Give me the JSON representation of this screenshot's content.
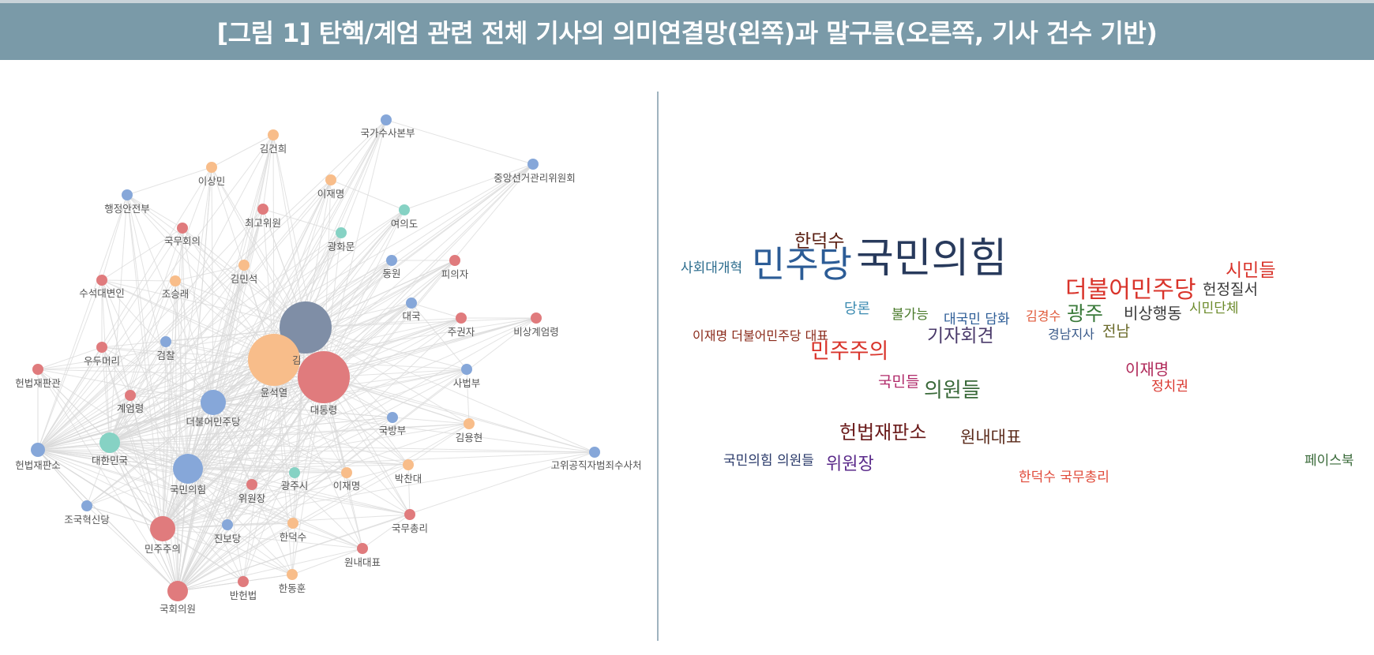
{
  "title": "[그림 1] 탄핵/계엄 관련 전체 기사의 의미연결망(왼쪽)과 말구름(오른쪽, 기사 건수 기반)",
  "colors": {
    "orange": "#f8bd8a",
    "blue": "#86a7d9",
    "red": "#e07b7d",
    "teal": "#86d2c4",
    "slate": "#7f8ea6",
    "edge": "#d9d9d9"
  },
  "network": {
    "nodes": [
      {
        "id": "n1",
        "label": "국가수사본부",
        "color": "blue"
      },
      {
        "id": "n2",
        "label": "김건희",
        "color": "orange"
      },
      {
        "id": "n3",
        "label": "중앙선거관리위원회",
        "color": "blue"
      },
      {
        "id": "n4",
        "label": "이상민",
        "color": "orange"
      },
      {
        "id": "n5",
        "label": "이재명",
        "color": "orange"
      },
      {
        "id": "n6",
        "label": "행정안전부",
        "color": "blue"
      },
      {
        "id": "n7",
        "label": "최고위원",
        "color": "red"
      },
      {
        "id": "n8",
        "label": "여의도",
        "color": "teal"
      },
      {
        "id": "n9",
        "label": "국무회의",
        "color": "red"
      },
      {
        "id": "n10",
        "label": "광화문",
        "color": "teal"
      },
      {
        "id": "n11",
        "label": "김민석",
        "color": "orange"
      },
      {
        "id": "n12",
        "label": "동원",
        "color": "blue"
      },
      {
        "id": "n13",
        "label": "피의자",
        "color": "red"
      },
      {
        "id": "n14",
        "label": "수석대변인",
        "color": "red"
      },
      {
        "id": "n15",
        "label": "조승래",
        "color": "orange"
      },
      {
        "id": "n16",
        "label": "대국",
        "color": "blue"
      },
      {
        "id": "n17",
        "label": "주권자",
        "color": "red"
      },
      {
        "id": "n18",
        "label": "비상계엄령",
        "color": "red"
      },
      {
        "id": "n19",
        "label": "김",
        "color": "slate"
      },
      {
        "id": "n20",
        "label": "우두머리",
        "color": "red"
      },
      {
        "id": "n21",
        "label": "검찰",
        "color": "blue"
      },
      {
        "id": "n22",
        "label": "윤석열",
        "color": "orange"
      },
      {
        "id": "n23",
        "label": "대통령",
        "color": "red"
      },
      {
        "id": "n24",
        "label": "사법부",
        "color": "blue"
      },
      {
        "id": "n25",
        "label": "헌법재판관",
        "color": "red"
      },
      {
        "id": "n26",
        "label": "계엄령",
        "color": "red"
      },
      {
        "id": "n27",
        "label": "더불어민주당",
        "color": "blue"
      },
      {
        "id": "n28",
        "label": "국방부",
        "color": "blue"
      },
      {
        "id": "n29",
        "label": "김용현",
        "color": "orange"
      },
      {
        "id": "n30",
        "label": "헌법재판소",
        "color": "blue"
      },
      {
        "id": "n31",
        "label": "대한민국",
        "color": "teal"
      },
      {
        "id": "n32",
        "label": "고위공직자범죄수사처",
        "color": "blue"
      },
      {
        "id": "n33",
        "label": "국민의힘",
        "color": "blue"
      },
      {
        "id": "n34",
        "label": "박찬대",
        "color": "orange"
      },
      {
        "id": "n35",
        "label": "광주시",
        "color": "teal"
      },
      {
        "id": "n36",
        "label": "이재명",
        "color": "orange"
      },
      {
        "id": "n37",
        "label": "위원장",
        "color": "red"
      },
      {
        "id": "n38",
        "label": "조국혁신당",
        "color": "blue"
      },
      {
        "id": "n39",
        "label": "국무총리",
        "color": "red"
      },
      {
        "id": "n40",
        "label": "민주주의",
        "color": "red"
      },
      {
        "id": "n41",
        "label": "진보당",
        "color": "blue"
      },
      {
        "id": "n42",
        "label": "한덕수",
        "color": "orange"
      },
      {
        "id": "n43",
        "label": "원내대표",
        "color": "red"
      },
      {
        "id": "n44",
        "label": "반헌법",
        "color": "red"
      },
      {
        "id": "n45",
        "label": "한동훈",
        "color": "orange"
      },
      {
        "id": "n46",
        "label": "국회의원",
        "color": "red"
      }
    ]
  },
  "wordcloud": [
    {
      "text": "국민의힘",
      "color": "#283a5c"
    },
    {
      "text": "민주당",
      "color": "#2c5c96"
    },
    {
      "text": "더불어민주당",
      "color": "#d9342b"
    },
    {
      "text": "한덕수",
      "color": "#5a1f12"
    },
    {
      "text": "사회대개혁",
      "color": "#2a6b8c"
    },
    {
      "text": "시민들",
      "color": "#d9342b"
    },
    {
      "text": "헌정질서",
      "color": "#3a3a3a"
    },
    {
      "text": "시민단체",
      "color": "#6b8a2a"
    },
    {
      "text": "당론",
      "color": "#3a8ab0"
    },
    {
      "text": "불가능",
      "color": "#4a7a2a"
    },
    {
      "text": "대국민 담화",
      "color": "#2c5c96"
    },
    {
      "text": "김경수",
      "color": "#e05a3a"
    },
    {
      "text": "광주",
      "color": "#3a7a3a"
    },
    {
      "text": "비상행동",
      "color": "#3a3a3a"
    },
    {
      "text": "경남지사",
      "color": "#3a5a8a"
    },
    {
      "text": "전남",
      "color": "#6a6a2a"
    },
    {
      "text": "이재명 더불어민주당 대표",
      "color": "#8a2a1a"
    },
    {
      "text": "기자회견",
      "color": "#4a3a6a"
    },
    {
      "text": "민주주의",
      "color": "#d9342b"
    },
    {
      "text": "이재명",
      "color": "#b02a5a"
    },
    {
      "text": "정치권",
      "color": "#d9342b"
    },
    {
      "text": "국민들",
      "color": "#b02a6a"
    },
    {
      "text": "의원들",
      "color": "#3a6a3a"
    },
    {
      "text": "헌법재판소",
      "color": "#6a1a1a"
    },
    {
      "text": "원내대표",
      "color": "#5a2a1a"
    },
    {
      "text": "국민의힘 의원들",
      "color": "#2a3a6a"
    },
    {
      "text": "위원장",
      "color": "#5a2a8a"
    },
    {
      "text": "한덕수 국무총리",
      "color": "#e04a3a"
    },
    {
      "text": "페이스북",
      "color": "#3a6a3a"
    }
  ]
}
